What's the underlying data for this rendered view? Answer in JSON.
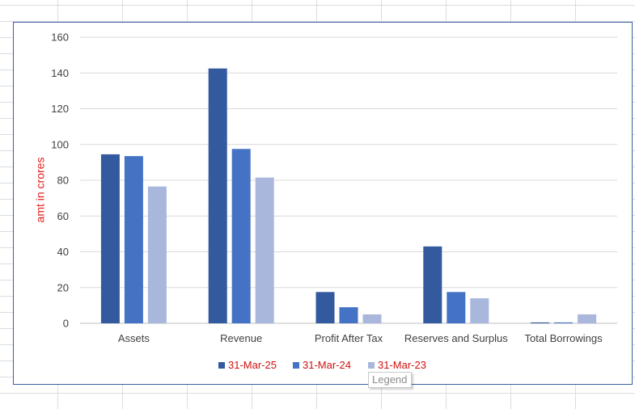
{
  "chart_data": {
    "type": "bar",
    "title": "",
    "xlabel": "",
    "ylabel": "amt in crores",
    "ylim": [
      0,
      160
    ],
    "yticks": [
      0,
      20,
      40,
      60,
      80,
      100,
      120,
      140,
      160
    ],
    "grid": true,
    "legend_position": "bottom",
    "categories": [
      "Assets",
      "Revenue",
      "Profit After Tax",
      "Reserves and Surplus",
      "Total Borrowings"
    ],
    "series": [
      {
        "name": "31-Mar-25",
        "color": "#335a9e",
        "values": [
          94.5,
          142.5,
          17.5,
          43,
          0.5
        ]
      },
      {
        "name": "31-Mar-24",
        "color": "#4472c4",
        "values": [
          93.5,
          97.5,
          9,
          17.5,
          0.5
        ]
      },
      {
        "name": "31-Mar-23",
        "color": "#a9b7dd",
        "values": [
          76.5,
          81.5,
          5,
          14,
          5
        ]
      }
    ]
  },
  "tooltip": {
    "text": "Legend"
  },
  "colors": {
    "ylabel": "#e02020",
    "legend_text": "#d01010",
    "gridline": "#d9d9d9",
    "axis": "#bfbfbf",
    "chart_border": "#3a5fa0"
  }
}
